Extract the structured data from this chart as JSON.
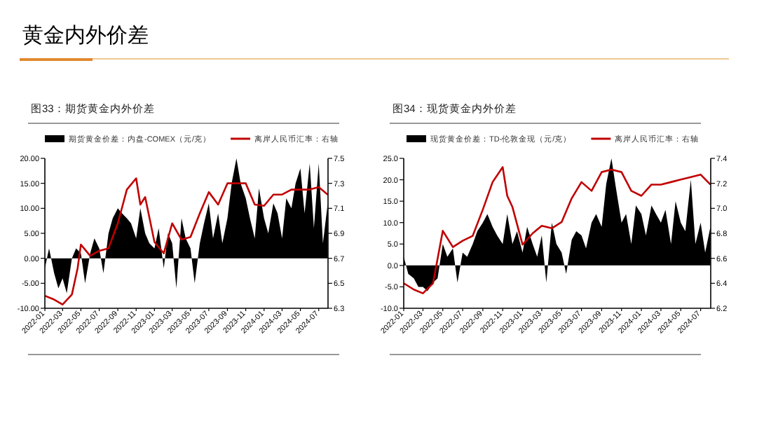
{
  "chart_data": [
    {
      "type": "other",
      "title": "黄金内外价差"
    },
    {
      "type": "area",
      "title": "图33：期货黄金内外价差",
      "legend": "top",
      "grid": false,
      "xlim": [
        "2022-01",
        "2024-08"
      ],
      "xticks": [
        "2022-01",
        "2022-03",
        "2022-05",
        "2022-07",
        "2022-09",
        "2022-11",
        "2023-01",
        "2023-03",
        "2023-05",
        "2023-07",
        "2023-09",
        "2023-11",
        "2024-01",
        "2024-03",
        "2024-05",
        "2024-07"
      ],
      "ylim": [
        -10,
        20
      ],
      "yticks": [
        {
          "value": -10,
          "label": "-10.00"
        },
        {
          "value": -5,
          "label": "-5.00"
        },
        {
          "value": 0,
          "label": "0.00"
        },
        {
          "value": 5,
          "label": "5.00"
        },
        {
          "value": 10,
          "label": "10.00"
        },
        {
          "value": 15,
          "label": "15.00"
        },
        {
          "value": 20,
          "label": "20.00"
        }
      ],
      "y2lim": [
        6.3,
        7.5
      ],
      "y2ticks": [
        6.3,
        6.5,
        6.7,
        6.9,
        7.1,
        7.3,
        7.5
      ],
      "series": [
        {
          "name": "期货黄金价差：内盘-COMEX（元/克）",
          "type": "area",
          "color": "#000000",
          "x": [
            "2022-01-01",
            "2022-01-15",
            "2022-02-01",
            "2022-02-15",
            "2022-03-01",
            "2022-03-15",
            "2022-04-01",
            "2022-04-15",
            "2022-05-01",
            "2022-05-15",
            "2022-06-01",
            "2022-06-15",
            "2022-07-01",
            "2022-07-15",
            "2022-08-01",
            "2022-08-15",
            "2022-09-01",
            "2022-09-15",
            "2022-10-01",
            "2022-10-15",
            "2022-11-01",
            "2022-11-15",
            "2022-12-01",
            "2022-12-15",
            "2023-01-01",
            "2023-01-15",
            "2023-02-01",
            "2023-02-15",
            "2023-03-01",
            "2023-03-15",
            "2023-04-01",
            "2023-04-15",
            "2023-05-01",
            "2023-05-15",
            "2023-06-01",
            "2023-06-15",
            "2023-07-01",
            "2023-07-15",
            "2023-08-01",
            "2023-08-15",
            "2023-09-01",
            "2023-09-15",
            "2023-10-01",
            "2023-10-15",
            "2023-11-01",
            "2023-11-15",
            "2023-12-01",
            "2023-12-15",
            "2024-01-01",
            "2024-01-15",
            "2024-02-01",
            "2024-02-15",
            "2024-03-01",
            "2024-03-15",
            "2024-04-01",
            "2024-04-15",
            "2024-05-01",
            "2024-05-15",
            "2024-06-01",
            "2024-06-15",
            "2024-07-01",
            "2024-07-15",
            "2024-07-31"
          ],
          "values": [
            -2,
            2,
            -3,
            -6,
            -4,
            -7,
            0,
            2,
            1,
            -5,
            1,
            4,
            2,
            -3,
            5,
            8,
            10,
            9,
            8,
            7,
            4,
            10,
            5,
            3,
            2,
            6,
            -2,
            5,
            3,
            -6,
            8,
            4,
            2,
            -5,
            3,
            7,
            11,
            4,
            9,
            3,
            8,
            15,
            20,
            15,
            12,
            8,
            4,
            14,
            8,
            5,
            11,
            9,
            4,
            12,
            10,
            15,
            18,
            9,
            19,
            6,
            19,
            3,
            11
          ]
        },
        {
          "name": "离岸人民币汇率：右轴",
          "type": "line",
          "axis": "y2",
          "color": "#c00000",
          "x": [
            "2022-01-01",
            "2022-02-01",
            "2022-03-01",
            "2022-04-01",
            "2022-04-20",
            "2022-05-01",
            "2022-06-01",
            "2022-07-01",
            "2022-08-01",
            "2022-09-01",
            "2022-10-01",
            "2022-11-01",
            "2022-11-15",
            "2022-12-01",
            "2023-01-01",
            "2023-02-01",
            "2023-03-01",
            "2023-04-01",
            "2023-05-01",
            "2023-06-01",
            "2023-07-01",
            "2023-08-01",
            "2023-09-01",
            "2023-10-01",
            "2023-11-01",
            "2023-12-01",
            "2024-01-01",
            "2024-02-01",
            "2024-03-01",
            "2024-04-01",
            "2024-05-01",
            "2024-06-01",
            "2024-07-01",
            "2024-07-31"
          ],
          "values": [
            6.4,
            6.37,
            6.33,
            6.41,
            6.62,
            6.81,
            6.72,
            6.76,
            6.78,
            6.98,
            7.25,
            7.34,
            7.13,
            7.19,
            6.83,
            6.74,
            6.98,
            6.85,
            6.87,
            7.06,
            7.23,
            7.13,
            7.3,
            7.3,
            7.3,
            7.13,
            7.12,
            7.21,
            7.21,
            7.25,
            7.25,
            7.25,
            7.27,
            7.21
          ]
        }
      ]
    },
    {
      "type": "area",
      "title": "图34：现货黄金内外价差",
      "legend": "top",
      "grid": false,
      "xlim": [
        "2022-01",
        "2024-08"
      ],
      "xticks": [
        "2022-01",
        "2022-03",
        "2022-05",
        "2022-07",
        "2022-09",
        "2022-11",
        "2023-01",
        "2023-03",
        "2023-05",
        "2023-07",
        "2023-09",
        "2023-11",
        "2024-01",
        "2024-03",
        "2024-05",
        "2024-07"
      ],
      "ylim": [
        -10,
        25
      ],
      "yticks": [
        {
          "value": -10,
          "label": "-10.0"
        },
        {
          "value": -5,
          "label": "-5.0"
        },
        {
          "value": 0,
          "label": "0.0"
        },
        {
          "value": 5,
          "label": "5.0"
        },
        {
          "value": 10,
          "label": "10.0"
        },
        {
          "value": 15,
          "label": "15.0"
        },
        {
          "value": 20,
          "label": "20.0"
        },
        {
          "value": 25,
          "label": "25.0"
        }
      ],
      "y2lim": [
        6.2,
        7.4
      ],
      "y2ticks": [
        6.2,
        6.4,
        6.6,
        6.8,
        {
          "value": 7,
          "label": "7.0"
        },
        7.2,
        7.4
      ],
      "series": [
        {
          "name": "现货黄金价差：TD-伦敦金现（元/克）",
          "type": "area",
          "color": "#000000",
          "x": [
            "2022-01-01",
            "2022-01-15",
            "2022-02-01",
            "2022-02-15",
            "2022-03-01",
            "2022-03-15",
            "2022-04-01",
            "2022-04-15",
            "2022-05-01",
            "2022-05-15",
            "2022-06-01",
            "2022-06-15",
            "2022-07-01",
            "2022-07-15",
            "2022-08-01",
            "2022-08-15",
            "2022-09-01",
            "2022-09-15",
            "2022-10-01",
            "2022-10-15",
            "2022-11-01",
            "2022-11-15",
            "2022-12-01",
            "2022-12-15",
            "2023-01-01",
            "2023-01-15",
            "2023-02-01",
            "2023-02-15",
            "2023-03-01",
            "2023-03-15",
            "2023-04-01",
            "2023-04-15",
            "2023-05-01",
            "2023-05-15",
            "2023-06-01",
            "2023-06-15",
            "2023-07-01",
            "2023-07-15",
            "2023-08-01",
            "2023-08-15",
            "2023-09-01",
            "2023-09-15",
            "2023-10-01",
            "2023-10-15",
            "2023-11-01",
            "2023-11-15",
            "2023-12-01",
            "2023-12-15",
            "2024-01-01",
            "2024-01-15",
            "2024-02-01",
            "2024-02-15",
            "2024-03-01",
            "2024-03-15",
            "2024-04-01",
            "2024-04-15",
            "2024-05-01",
            "2024-05-15",
            "2024-06-01",
            "2024-06-15",
            "2024-07-01",
            "2024-07-15",
            "2024-07-31"
          ],
          "values": [
            2,
            -2,
            -3,
            -5,
            -5,
            -6,
            -4,
            -3,
            5,
            2,
            4,
            -4,
            3,
            2,
            5,
            8,
            10,
            12,
            9,
            7,
            5,
            12,
            5,
            8,
            3,
            9,
            5,
            2,
            7,
            -4,
            10,
            5,
            3,
            -2,
            6,
            8,
            7,
            4,
            10,
            12,
            9,
            19,
            25,
            18,
            10,
            12,
            5,
            14,
            12,
            7,
            14,
            12,
            10,
            13,
            5,
            15,
            10,
            8,
            20,
            5,
            10,
            3,
            9
          ]
        },
        {
          "name": "离岸人民币汇率：右轴",
          "type": "line",
          "axis": "y2",
          "color": "#c00000",
          "x": [
            "2022-01-01",
            "2022-02-01",
            "2022-03-01",
            "2022-04-01",
            "2022-05-01",
            "2022-06-01",
            "2022-07-01",
            "2022-08-01",
            "2022-09-01",
            "2022-10-01",
            "2022-11-01",
            "2022-11-15",
            "2022-12-01",
            "2023-01-01",
            "2023-02-01",
            "2023-03-01",
            "2023-04-01",
            "2023-05-01",
            "2023-06-01",
            "2023-07-01",
            "2023-08-01",
            "2023-09-01",
            "2023-10-01",
            "2023-11-01",
            "2023-12-01",
            "2024-01-01",
            "2024-02-01",
            "2024-03-01",
            "2024-04-01",
            "2024-05-01",
            "2024-06-01",
            "2024-07-01",
            "2024-07-31"
          ],
          "values": [
            6.4,
            6.35,
            6.32,
            6.4,
            6.82,
            6.69,
            6.74,
            6.78,
            6.99,
            7.21,
            7.33,
            7.1,
            7.01,
            6.71,
            6.8,
            6.86,
            6.84,
            6.89,
            7.08,
            7.21,
            7.14,
            7.29,
            7.31,
            7.29,
            7.14,
            7.1,
            7.19,
            7.19,
            7.21,
            7.23,
            7.25,
            7.27,
            7.19
          ]
        }
      ]
    }
  ]
}
